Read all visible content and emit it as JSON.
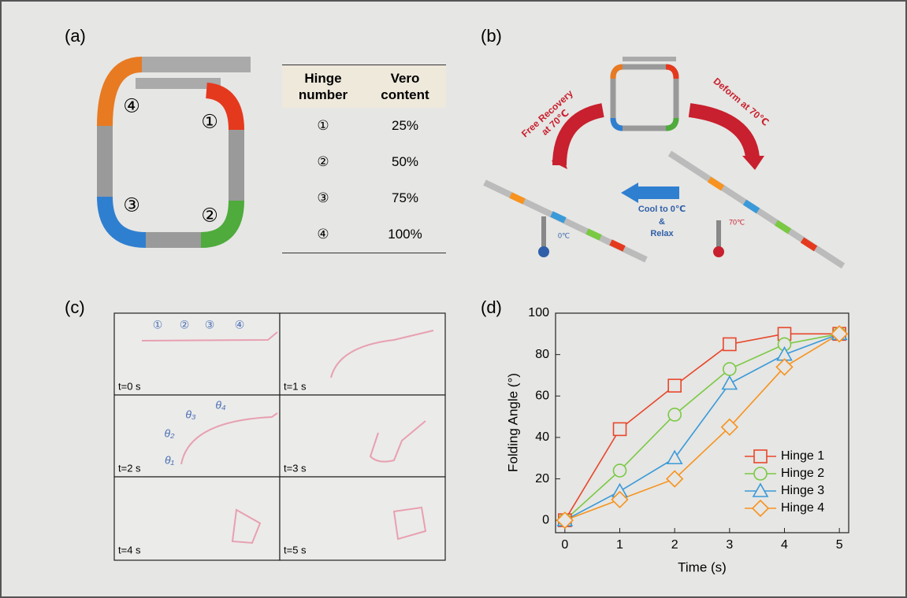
{
  "panel_labels": [
    "(a)",
    "(b)",
    "(c)",
    "(d)"
  ],
  "diagram_a": {
    "labels": [
      "④",
      "①",
      "③",
      "②"
    ]
  },
  "table": {
    "header": [
      "Hinge number",
      "Vero content"
    ],
    "rows": [
      [
        "①",
        "25%"
      ],
      [
        "②",
        "50%"
      ],
      [
        "③",
        "75%"
      ],
      [
        "④",
        "100%"
      ]
    ]
  },
  "diagram_b": {
    "recover": [
      "Free Recovery",
      "at 70℃"
    ],
    "deform": "Deform at 70℃",
    "cool": [
      "Cool to 0℃",
      "&",
      "Relax"
    ],
    "cold": "0℃",
    "hot": "70℃"
  },
  "photos_c": {
    "frames": [
      "t=0 s",
      "t=1 s",
      "t=2 s",
      "t=3 s",
      "t=4 s",
      "t=5 s"
    ],
    "hinges": [
      "①",
      "②",
      "③",
      "④"
    ],
    "angles": [
      "θ₁",
      "θ₂",
      "θ₃",
      "θ₄"
    ]
  },
  "chart_data": {
    "type": "line",
    "xlabel": "Time (s)",
    "ylabel": "Folding Angle (°)",
    "x": [
      0,
      1,
      2,
      3,
      4,
      5
    ],
    "xlim": [
      -0.17,
      5.17
    ],
    "xticks": [
      0,
      1,
      2,
      3,
      4,
      5
    ],
    "ylim": [
      -6,
      100
    ],
    "yticks": [
      0,
      20,
      40,
      60,
      80,
      100
    ],
    "legend": "lower right",
    "series": [
      {
        "name": "Hinge 1",
        "color": "#e8462a",
        "marker": "square",
        "values": [
          0,
          44,
          65,
          85,
          90,
          90
        ]
      },
      {
        "name": "Hinge 2",
        "color": "#7ac943",
        "marker": "circle",
        "values": [
          0,
          24,
          51,
          73,
          85,
          90
        ]
      },
      {
        "name": "Hinge 3",
        "color": "#3a9ad9",
        "marker": "triangle",
        "values": [
          0,
          14,
          30,
          66,
          80,
          90
        ]
      },
      {
        "name": "Hinge 4",
        "color": "#f7931e",
        "marker": "diamond",
        "values": [
          0,
          10,
          20,
          45,
          74,
          90
        ]
      }
    ]
  }
}
